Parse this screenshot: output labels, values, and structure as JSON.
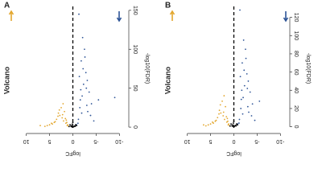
{
  "chart_data": [
    {
      "type": "scatter",
      "panel_label": "A",
      "title": "Volcano",
      "x_label": "logFC",
      "y_label": "-log10(FDR)",
      "xlim": [
        11.5,
        -11.5
      ],
      "ylim": [
        -3,
        155
      ],
      "xticks": [
        10,
        5,
        0,
        -5,
        -10
      ],
      "yticks": [
        0,
        50,
        100,
        150
      ],
      "series": [
        {
          "color": "#e3a72f",
          "x": [
            1.2,
            1.5,
            2,
            2.3,
            2.8,
            3.1,
            3.5,
            4,
            4.4,
            5,
            5.5,
            6,
            1.8,
            2.5,
            3.2,
            1.4,
            2.1,
            2.9,
            3.8,
            4.6,
            1.1,
            1.6,
            2.2,
            7,
            0.9,
            1.3
          ],
          "values": [
            2,
            5,
            8,
            12,
            15,
            18,
            10,
            6,
            4,
            3,
            2,
            1,
            20,
            25,
            14,
            9,
            30,
            22,
            7,
            5,
            3,
            11,
            16,
            2,
            1,
            6
          ]
        },
        {
          "color": "#2f5597",
          "x": [
            -1.2,
            -1.5,
            -2,
            -2.3,
            -2.8,
            -3.1,
            -3.5,
            -4,
            -1.8,
            -2.5,
            -3.2,
            -1.4,
            -2.1,
            -2.9,
            -3.8,
            -1.1,
            -1.6,
            -2.2,
            -4.5,
            -1.3,
            -2.6,
            -3,
            -1.9,
            -5.5,
            -0.8,
            -1.7,
            -9
          ],
          "values": [
            10,
            25,
            40,
            55,
            70,
            60,
            45,
            30,
            85,
            100,
            20,
            65,
            115,
            50,
            15,
            5,
            35,
            75,
            8,
            145,
            90,
            28,
            18,
            35,
            3,
            48,
            38
          ]
        },
        {
          "color": "#000000",
          "x": [
            -0.5,
            0.3,
            -0.2,
            0.6,
            -0.8,
            0.1,
            0.4,
            -0.4,
            0.8,
            -0.6,
            0,
            0.2
          ],
          "values": [
            1,
            2,
            0.5,
            3,
            2,
            4,
            1,
            1.5,
            0.8,
            3,
            6,
            0.3
          ]
        }
      ]
    },
    {
      "type": "scatter",
      "panel_label": "B",
      "title": "Volcano",
      "x_label": "logFC",
      "y_label": "-log10(FDR)",
      "xlim": [
        11.5,
        -11.5
      ],
      "ylim": [
        -3,
        132
      ],
      "xticks": [
        10,
        5,
        0,
        -5,
        -10
      ],
      "yticks": [
        0,
        20,
        40,
        60,
        80,
        100,
        120
      ],
      "series": [
        {
          "color": "#e3a72f",
          "x": [
            1.2,
            1.5,
            2,
            2.3,
            2.8,
            3.1,
            3.5,
            4,
            4.4,
            5,
            5.5,
            6,
            1.8,
            2.5,
            3.2,
            1.4,
            2.1,
            2.9,
            3.8,
            4.6,
            1.1,
            1.6,
            2.2,
            6.5,
            0.9,
            1.3
          ],
          "values": [
            2,
            5,
            8,
            12,
            15,
            18,
            10,
            6,
            4,
            3,
            2,
            1,
            22,
            28,
            14,
            9,
            34,
            24,
            7,
            5,
            3,
            11,
            16,
            2,
            1,
            6
          ]
        },
        {
          "color": "#2f5597",
          "x": [
            -1.2,
            -1.5,
            -2,
            -2.3,
            -2.8,
            -3.1,
            -3.5,
            -4,
            -1.8,
            -2.5,
            -3.2,
            -1.4,
            -2.1,
            -2.9,
            -3.8,
            -1.1,
            -1.6,
            -2.2,
            -4.5,
            -1.3,
            -2.6,
            -3,
            -1.9,
            -5.5,
            -0.8,
            -1.7
          ],
          "values": [
            8,
            20,
            32,
            45,
            58,
            50,
            38,
            25,
            70,
            85,
            16,
            55,
            95,
            42,
            12,
            4,
            30,
            62,
            7,
            128,
            75,
            22,
            14,
            28,
            3,
            40
          ]
        },
        {
          "color": "#000000",
          "x": [
            -0.5,
            0.3,
            -0.2,
            0.6,
            -0.8,
            0.1,
            0.4,
            -0.4,
            0.8,
            -0.6,
            0,
            0.2
          ],
          "values": [
            1,
            2,
            0.5,
            3,
            2,
            4,
            1,
            1.5,
            0.8,
            3,
            6,
            0.3
          ]
        }
      ]
    }
  ]
}
